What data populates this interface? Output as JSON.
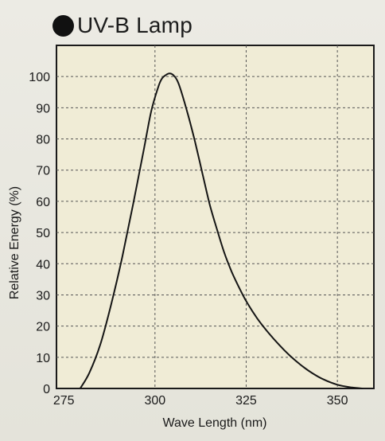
{
  "chart_data": {
    "type": "line",
    "title": "UV-B Lamp",
    "xlabel": "Wave Length (nm)",
    "ylabel": "Relative Energy (%)",
    "xlim": [
      273,
      360
    ],
    "ylim": [
      0,
      110
    ],
    "xticks": [
      275,
      300,
      325,
      350
    ],
    "yticks": [
      0,
      10,
      20,
      30,
      40,
      50,
      60,
      70,
      80,
      90,
      100
    ],
    "x_tick_labels": [
      "275",
      "300",
      "325",
      "350"
    ],
    "y_tick_labels": [
      "0",
      "10",
      "20",
      "30",
      "40",
      "50",
      "60",
      "70",
      "80",
      "90",
      "100"
    ],
    "grid": true,
    "series": [
      {
        "x": [
          279.5,
          282,
          285,
          288,
          291,
          294,
          297,
          299,
          301,
          302,
          303,
          304,
          305,
          306,
          307,
          309,
          311,
          313,
          315,
          317,
          319,
          321,
          323,
          325,
          328,
          331,
          334,
          337,
          340,
          343,
          346,
          350,
          354,
          357
        ],
        "y": [
          0,
          5,
          14,
          27,
          42,
          59,
          77,
          89,
          97,
          99.5,
          100.5,
          101,
          100.5,
          99,
          96,
          88,
          79,
          69,
          59,
          51,
          43.5,
          37.5,
          32.5,
          28,
          22.5,
          18,
          14,
          10.5,
          7.5,
          5,
          3,
          1.2,
          0.3,
          0
        ]
      }
    ]
  }
}
